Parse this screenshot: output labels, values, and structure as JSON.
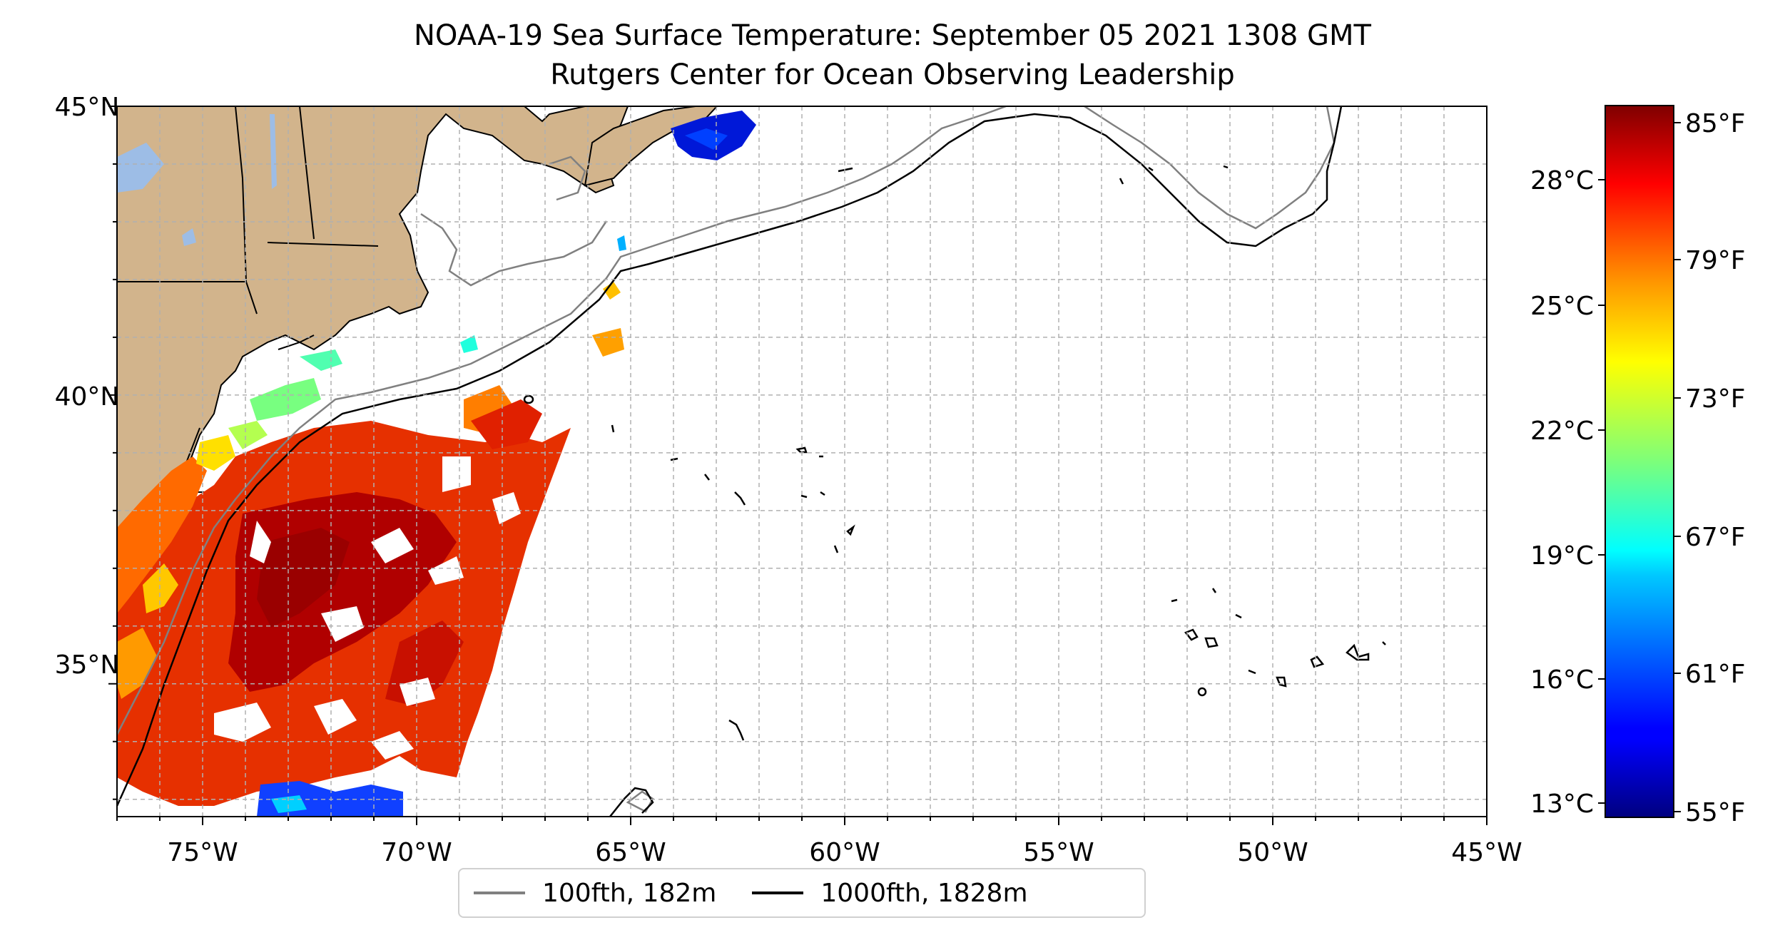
{
  "title": "NOAA-19 Sea Surface Temperature: September 05 2021 1308 GMT",
  "subtitle": "Rutgers Center for Ocean Observing Leadership",
  "map": {
    "lon_range": [
      -77,
      -45
    ],
    "lat_range": [
      32.7,
      45
    ],
    "gridlines": "on",
    "lon_ticks": [
      "75°W",
      "70°W",
      "65°W",
      "60°W",
      "55°W",
      "50°W",
      "45°W"
    ],
    "lat_ticks": [
      "45°N",
      "40°N",
      "35°N"
    ],
    "colors": {
      "land": "#d2b48c",
      "lakes": "#9dbde6",
      "isobath_100fth": "#808080",
      "isobath_1000fth": "#000000"
    }
  },
  "colorbar": {
    "colormap": "jet",
    "range_f": [
      55,
      86
    ],
    "celsius_ticks": [
      "28°C",
      "25°C",
      "22°C",
      "19°C",
      "16°C",
      "13°C"
    ],
    "fahrenheit_ticks": [
      "85°F",
      "79°F",
      "73°F",
      "67°F",
      "61°F",
      "55°F"
    ]
  },
  "legend": {
    "items": [
      {
        "label": "100fth, 182m",
        "color": "#808080"
      },
      {
        "label": "1000fth, 1828m",
        "color": "#000000"
      }
    ],
    "placement": "bottom-center"
  }
}
